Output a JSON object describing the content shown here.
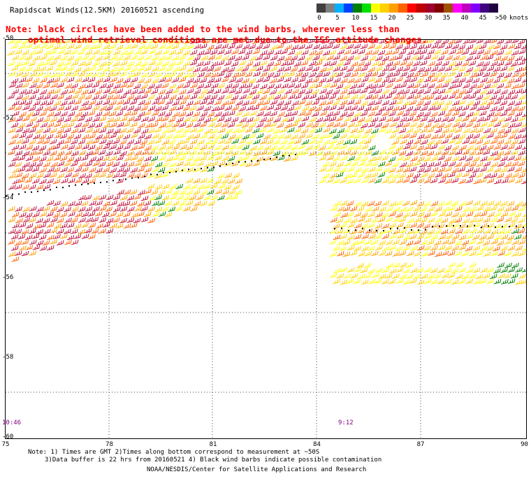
{
  "title": "Rapidscat Winds(12.5KM) 20160521 ascending",
  "note": {
    "line1": "Note: black circles have been added to the wind barbs, wherever less than",
    "line2": "optimal wind retrieval conditions are met due to the ISS attitude changes."
  },
  "scale": {
    "ticks": [
      "0",
      "5",
      "10",
      "15",
      "20",
      "25",
      "30",
      "35",
      "40",
      "45",
      ">50"
    ],
    "unit": "knots",
    "colors": [
      "#404040",
      "#808080",
      "#00b0ff",
      "#0040ff",
      "#008000",
      "#00e000",
      "#ffff00",
      "#ffd000",
      "#ffa000",
      "#ff6000",
      "#ff0000",
      "#c00000",
      "#a00030",
      "#800000",
      "#a05000",
      "#ff00ff",
      "#c000c0",
      "#8000ff",
      "#400080",
      "#200040"
    ]
  },
  "axes": {
    "lon": [
      "75",
      "78",
      "81",
      "84",
      "87",
      "90"
    ],
    "lat": [
      "-50",
      "-52",
      "-54",
      "-56",
      "-58",
      "-60"
    ]
  },
  "times": {
    "left": "10:46",
    "right": "9:12"
  },
  "footer": {
    "line1": "Note: 1) Times are GMT 2)Times along bottom correspond to measurement at ~50S",
    "line2": "3)Data buffer is 22 hrs from 20160521 4) Black wind barbs indicate possible contamination",
    "line3": "NOAA/NESDIS/Center for Satellite Applications and Research"
  },
  "colors": {
    "barb_strong": "#c0103c",
    "barb_mid": "#ff6000",
    "barb_moderate": "#ffa000",
    "barb_light": "#ffd000",
    "barb_weak": "#ffff00",
    "barb_calm": "#008000",
    "flag_circle": "#000000"
  }
}
